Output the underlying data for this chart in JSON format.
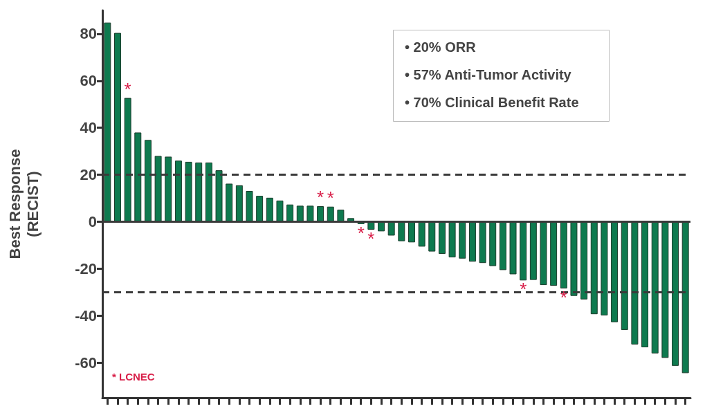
{
  "chart_data": {
    "type": "bar",
    "ylabel": "Best Response\n(RECIST)",
    "categories": [
      null,
      null,
      null,
      null,
      null,
      null,
      null,
      null,
      null,
      null,
      null,
      null,
      null,
      null,
      null,
      null,
      null,
      null,
      null,
      null,
      null,
      null,
      null,
      null,
      null,
      null,
      null,
      null,
      null,
      null,
      null,
      null,
      null,
      null,
      null,
      null,
      null,
      null,
      null,
      null,
      null,
      null,
      null,
      null,
      null,
      null,
      null,
      null,
      null,
      null,
      null,
      null,
      null,
      null,
      null,
      null,
      null,
      null
    ],
    "values": [
      84.8,
      80.4,
      52.7,
      38,
      34.8,
      28,
      27.7,
      26,
      25.5,
      25.2,
      25.2,
      21.9,
      16.2,
      15.5,
      13.1,
      11,
      10.2,
      9,
      7.3,
      6.8,
      6.8,
      6.6,
      6.4,
      5.1,
      1.5,
      -1,
      -3.4,
      -4.1,
      -5.9,
      -8.3,
      -8.8,
      -10.6,
      -12.7,
      -13.7,
      -15.2,
      -15.7,
      -17,
      -17.6,
      -18.9,
      -20.6,
      -22.4,
      -25,
      -24.8,
      -27,
      -27.3,
      -28.4,
      -31.6,
      -33.1,
      -39.4,
      -39.9,
      -42.8,
      -46.1,
      -52.3,
      -53.5,
      -56.1,
      -58,
      -61.4,
      -64.5
    ],
    "color": "#0e7a4f",
    "ylim": [
      -75,
      90
    ],
    "yticks": [
      -60,
      -40,
      -20,
      0,
      20,
      40,
      60,
      80
    ],
    "ref_lines": [
      {
        "axis": "y",
        "value": 20,
        "line_style": "dashed",
        "color": "#3a3a3a"
      },
      {
        "axis": "y",
        "value": -30,
        "line_style": "dashed",
        "color": "#3a3a3a"
      },
      {
        "axis": "y",
        "value": 0,
        "line_style": "solid",
        "color": "#3a3a3a"
      }
    ],
    "annotations": [
      {
        "text": "*",
        "y": 52.7
      },
      {
        "text": "*",
        "y": 6.6
      },
      {
        "text": "*",
        "y": 6.4
      },
      {
        "text": "*",
        "y": -1
      },
      {
        "text": "*",
        "y": -3.4
      },
      {
        "text": "*",
        "y": -25
      },
      {
        "text": "*",
        "y": -28.4
      },
      "• 20% ORR",
      "• 57% Anti-Tumor Activity",
      "• 70% Clinical Benefit Rate",
      "* LCNEC"
    ],
    "tick_labels": "y",
    "grid": false
  }
}
